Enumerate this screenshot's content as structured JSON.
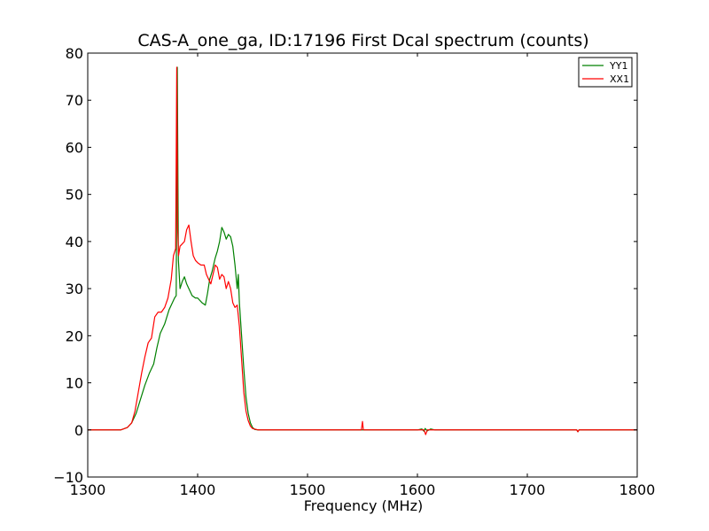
{
  "chart_data": {
    "type": "line",
    "title": "CAS-A_one_ga, ID:17196 First Dcal spectrum (counts)",
    "xlabel": "Frequency (MHz)",
    "ylabel": "",
    "xlim": [
      1300,
      1800
    ],
    "ylim": [
      -10,
      80
    ],
    "xticks": [
      1300,
      1400,
      1500,
      1600,
      1700,
      1800
    ],
    "yticks": [
      -10,
      0,
      10,
      20,
      30,
      40,
      50,
      60,
      70,
      80
    ],
    "xtick_labels": [
      "1300",
      "1400",
      "1500",
      "1600",
      "1700",
      "1800"
    ],
    "ytick_labels": [
      "−10",
      "0",
      "10",
      "20",
      "30",
      "40",
      "50",
      "60",
      "70",
      "80"
    ],
    "grid": false,
    "legend_position": "top-right",
    "series": [
      {
        "name": "YY1",
        "color": "#008000",
        "x": [
          1300,
          1330,
          1336,
          1340,
          1344,
          1348,
          1352,
          1356,
          1360,
          1363,
          1366,
          1370,
          1374,
          1377,
          1379,
          1380.5,
          1381.5,
          1382.5,
          1384,
          1386,
          1388,
          1390,
          1392,
          1395,
          1398,
          1400,
          1404,
          1407,
          1409,
          1411,
          1413,
          1416,
          1418,
          1420,
          1422,
          1424,
          1426,
          1428,
          1430,
          1432,
          1434,
          1436,
          1437,
          1438,
          1440,
          1442,
          1444,
          1446,
          1448,
          1450,
          1452,
          1455,
          1460,
          1470,
          1500,
          1600,
          1604,
          1606,
          1607,
          1609,
          1612,
          1616,
          1620,
          1700,
          1745,
          1746,
          1747,
          1800
        ],
        "y": [
          0,
          0,
          0.5,
          1.5,
          3.5,
          6.5,
          9.5,
          12,
          14,
          17.5,
          20.5,
          22.5,
          25.5,
          27,
          28,
          28.5,
          77,
          36,
          30,
          31.5,
          32.5,
          31,
          30,
          28.5,
          28,
          28,
          27,
          26.5,
          29,
          32,
          33.5,
          36.5,
          38,
          40,
          43,
          42,
          40.5,
          41.5,
          41,
          39,
          35,
          30,
          33,
          27,
          20,
          13,
          7,
          3.5,
          1.5,
          0.5,
          0.1,
          0,
          0,
          0,
          0,
          0,
          0.2,
          -0.3,
          0.3,
          -0.2,
          0.2,
          0,
          0,
          0,
          0,
          -0.4,
          0,
          0
        ]
      },
      {
        "name": "XX1",
        "color": "#ff0000",
        "x": [
          1300,
          1330,
          1336,
          1340,
          1343,
          1346,
          1349,
          1352,
          1355,
          1358,
          1361,
          1364,
          1367,
          1370,
          1373,
          1376,
          1378,
          1380,
          1381,
          1381.8,
          1382.6,
          1384,
          1386,
          1388,
          1390,
          1392,
          1394,
          1396,
          1398,
          1400,
          1403,
          1406,
          1408,
          1410,
          1412,
          1414,
          1416,
          1418,
          1420,
          1422,
          1424,
          1426,
          1428,
          1430,
          1432,
          1434,
          1436,
          1438,
          1440,
          1442,
          1444,
          1446,
          1448,
          1450,
          1455,
          1460,
          1470,
          1500,
          1549,
          1550,
          1550.8,
          1551.5,
          1600,
          1606,
          1607.5,
          1609,
          1612,
          1700,
          1745,
          1746,
          1747,
          1800
        ],
        "y": [
          0,
          0,
          0.5,
          1.5,
          4,
          8,
          12,
          15.5,
          18.5,
          19.5,
          24,
          25,
          25,
          26,
          28,
          32,
          37,
          38.5,
          77,
          43,
          37,
          39,
          39.5,
          40,
          42.5,
          43.5,
          40,
          37,
          36,
          35.5,
          35,
          35,
          33,
          32,
          31,
          33,
          35,
          34.5,
          32,
          33,
          32.5,
          30,
          31.5,
          30,
          27,
          26,
          26.5,
          22,
          15,
          8,
          4,
          2,
          0.8,
          0.3,
          0,
          0,
          0,
          0,
          0,
          1.8,
          0,
          0,
          0,
          0,
          -1,
          0,
          0,
          0,
          0,
          -0.4,
          0,
          0
        ]
      }
    ]
  }
}
